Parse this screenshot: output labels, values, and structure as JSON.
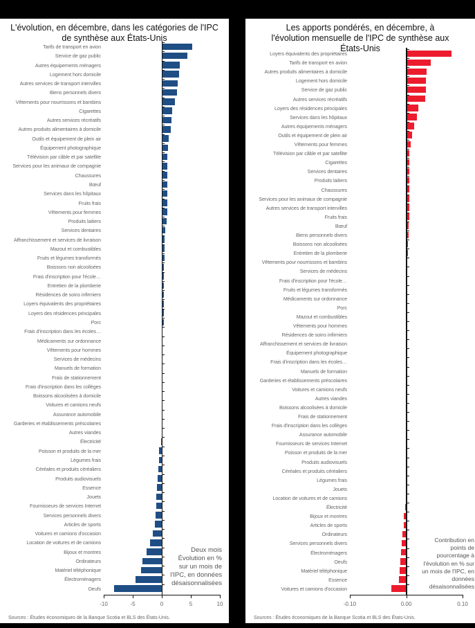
{
  "colors": {
    "left_bar": "#1f4e85",
    "right_bar": "#ec1c2e",
    "background": "#000000",
    "panel": "#ffffff"
  },
  "chart_data": [
    {
      "type": "bar",
      "orientation": "horizontal",
      "title": "L'évolution, en décembre, dans les catégories de l'IPC de synthèse aux États-Unis",
      "xlabel": "Deux mois Évolution en % sur un mois de l'IPC, en données désaisonnalisées",
      "xlim": [
        -10,
        10
      ],
      "xticks": [
        "-10",
        "-5",
        "0",
        "5",
        "10"
      ],
      "source": "Sources : Études économiques de la Banque Scotia et BLS des États-Unis.",
      "categories": [
        "Tarifs de transport en avion",
        "Service de gaz public",
        "Autres équipements ménagers",
        "Logement hors domicile",
        "Autres services de transport intervilles",
        "Biens personnels divers",
        "Vêtements pour nourrissons et bambins",
        "Cigarettes",
        "Autres services récréatifs",
        "Autres produits alimentaires à domicile",
        "Outils et équipement de plein air",
        "Équipement photographique",
        "Télévision par câble et par satellite",
        "Services pour les animaux de compagnie",
        "Chaussures",
        "Bœuf",
        "Services dans les hôpitaux",
        "Fruits frais",
        "Vêtements pour femmes",
        "Produits laitiers",
        "Services dentaires",
        "Affranchissement et services de livraison",
        "Mazout et combustibles",
        "Fruits et légumes transformés",
        "Boissons non alcoolisées",
        "Frais d'inscription pour l'école…",
        "Entretien de la plomberie",
        "Résidences de soins infirmiers",
        "Loyers équivalents des propriétaires",
        "Loyers des résidences principales",
        "Porc",
        "Frais d'inscription dans les écoles…",
        "Médicaments sur ordonnance",
        "Vêtements pour hommes",
        "Services de médecins",
        "Manuels de formation",
        "Frais de stationnement",
        "Frais d'inscription dans les collèges",
        "Boissons alcoolisées à domicile",
        "Voitures et camions neufs",
        "Assurance automobile",
        "Garderies et établissements préscolaires",
        "Autres viandes",
        "Électricité",
        "Poisson et produits de la mer",
        "Légumes frais",
        "Céréales et produits céréaliers",
        "Produits audiovisuels",
        "Essence",
        "Jouets",
        "Fournisseurs de services Internet",
        "Services personnels divers",
        "Articles de sports",
        "Voitures et camions d'occasion",
        "Location de voitures et de camions",
        "Bijoux et montres",
        "Ordinateurs",
        "Matériel téléphonique",
        "Électroménagers",
        "Oeufs"
      ],
      "values": [
        5.2,
        4.4,
        3.1,
        3.0,
        2.7,
        2.6,
        2.3,
        1.8,
        1.7,
        1.6,
        1.2,
        1.1,
        1.0,
        1.0,
        1.0,
        0.9,
        0.9,
        0.9,
        0.9,
        0.8,
        0.6,
        0.5,
        0.5,
        0.5,
        0.4,
        0.4,
        0.4,
        0.3,
        0.3,
        0.3,
        0.3,
        0.1,
        0.1,
        0.1,
        0.05,
        0.05,
        0.03,
        0.02,
        0.02,
        0.01,
        0.01,
        0.0,
        0.0,
        -0.1,
        -0.5,
        -0.5,
        -0.6,
        -0.7,
        -0.8,
        -0.9,
        -1.0,
        -1.1,
        -1.2,
        -1.5,
        -2.0,
        -2.6,
        -3.3,
        -3.6,
        -4.5,
        -8.2
      ]
    },
    {
      "type": "bar",
      "orientation": "horizontal",
      "title": "Les apports pondérés, en décembre, à l'évolution mensuelle de l'IPC de synthèse aux États-Unis",
      "xlabel": "Contribution en points de pourcentage à l'évolution en % sur un mois de l'IPC, en données désaisonnalisées",
      "xlim": [
        -0.1,
        0.1
      ],
      "xticks": [
        "-0.10",
        "0.00",
        "0.10"
      ],
      "source": "Sources : Études économiques de la Banque Scotia et BLS des États-Unis.",
      "categories": [
        "Loyers équivalents des propriétaires",
        "Tarifs de transport en avion",
        "Autres produits alimentaires à domicile",
        "Logement hors domicile",
        "Service de gaz public",
        "Autres services récréatifs",
        "Loyers des résidences principales",
        "Services dans les hôpitaux",
        "Autres équipements ménagers",
        "Outils et équipement de plein air",
        "Vêtements pour femmes",
        "Télévision par câble et par satellite",
        "Cigarettes",
        "Services dentaires",
        "Produits laitiers",
        "Chaussures",
        "Services pour les animaux de compagnie",
        "Autres services de transport intervilles",
        "Fruits frais",
        "Bœuf",
        "Biens personnels divers",
        "Boissons non alcoolisées",
        "Entretien de la plomberie",
        "Vêtements pour nourrissons et bambins",
        "Services de médecins",
        "Frais d'inscription pour l'école…",
        "Fruits et légumes transformés",
        "Médicaments sur ordonnance",
        "Porc",
        "Mazout et combustibles",
        "Vêtements pour hommes",
        "Résidences de soins infirmiers",
        "Affranchissement et services de livraison",
        "Équipement photographique",
        "Frais d'inscription dans les écoles…",
        "Manuels de formation",
        "Garderies et établissements préscolaires",
        "Voitures et camions neufs",
        "Autres viandes",
        "Boissons alcoolisées à domicile",
        "Frais de stationnement",
        "Frais d'inscription dans les collèges",
        "Assurance automobile",
        "Fournisseurs de services Internet",
        "Poisson et produits de la mer",
        "Produits audiovisuels",
        "Céréales et produits céréaliers",
        "Légumes frais",
        "Jouets",
        "Location de voitures et de camions",
        "Électricité",
        "Bijoux et montres",
        "Articles de sports",
        "Ordinateurs",
        "Services personnels divers",
        "Électroménagers",
        "Oeufs",
        "Matériel téléphonique",
        "Essence",
        "Voitures et camions d'occasion"
      ],
      "values": [
        0.08,
        0.044,
        0.036,
        0.035,
        0.035,
        0.034,
        0.022,
        0.019,
        0.014,
        0.01,
        0.008,
        0.006,
        0.006,
        0.006,
        0.005,
        0.005,
        0.005,
        0.005,
        0.005,
        0.004,
        0.004,
        0.003,
        0.003,
        0.002,
        0.002,
        0.002,
        0.001,
        0.001,
        0.001,
        0.001,
        0.001,
        0.001,
        0.0,
        0.0,
        0.0,
        0.0,
        0.0,
        0.0,
        0.0,
        0.0,
        0.0,
        0.0,
        0.0,
        0.0,
        0.0,
        0.0,
        -0.001,
        -0.001,
        -0.001,
        -0.001,
        -0.002,
        -0.004,
        -0.004,
        -0.007,
        -0.008,
        -0.009,
        -0.011,
        -0.012,
        -0.013,
        -0.026
      ]
    }
  ],
  "left": {
    "title": "L'évolution, en décembre, dans les catégories de l'IPC de synthèse aux États-Unis",
    "note_lines": [
      "Deux mois",
      "Évolution en %",
      "sur un mois de",
      "l'IPC, en données",
      "désaisonnalisées"
    ],
    "source": "Sources : Études économiques de la Banque Scotia et BLS des États-Unis."
  },
  "right": {
    "title": "Les apports pondérés, en décembre, à l'évolution mensuelle de l'IPC de synthèse aux États-Unis",
    "note_lines": [
      "Contribution en",
      "points de",
      "pourcentage à",
      "l'évolution en % sur",
      "un mois de l'IPC, en",
      "données",
      "désaisonnalisées"
    ],
    "source": "Sources : Études économiques de la Banque Scotia et BLS des États-Unis."
  }
}
